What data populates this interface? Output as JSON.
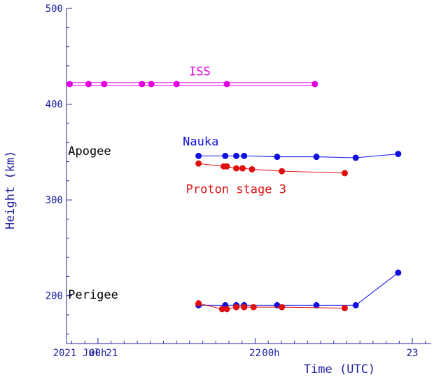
{
  "chart_data": {
    "type": "line",
    "title": "",
    "xlabel": "Time (UTC)",
    "ylabel": "Height (km)",
    "xlim": [
      -0.1,
      1.06
    ],
    "ylim": [
      150,
      500
    ],
    "grid": false,
    "colors": {
      "axis": "#2020a0",
      "text": "#000000",
      "iss": "#e000e0",
      "nauka": "#1010e0",
      "proton": "#e01010"
    },
    "x_tick_labels": [
      {
        "x": -0.04,
        "text": "2021 Jul 21"
      },
      {
        "x": 0.0,
        "text": "00h"
      },
      {
        "x": 0.5,
        "text": "22"
      },
      {
        "x": 0.55,
        "text": "00h"
      },
      {
        "x": 1.0,
        "text": "23"
      }
    ],
    "y_tick_labels": [
      {
        "y": 200,
        "text": "200"
      },
      {
        "y": 300,
        "text": "300"
      },
      {
        "y": 400,
        "text": "400"
      },
      {
        "y": 500,
        "text": "500"
      }
    ],
    "annotations": [
      {
        "text": "ISS",
        "x": 0.29,
        "y": 430,
        "color": "iss"
      },
      {
        "text": "Nauka",
        "x": 0.27,
        "y": 357,
        "color": "nauka"
      },
      {
        "text": "Proton stage 3",
        "x": 0.28,
        "y": 307,
        "color": "proton"
      },
      {
        "text": "Apogee",
        "x": -0.095,
        "y": 347,
        "color": "text"
      },
      {
        "text": "Perigee",
        "x": -0.095,
        "y": 197,
        "color": "text"
      }
    ],
    "series": [
      {
        "name": "ISS",
        "label_ref": 0,
        "color": "iss",
        "line": "double",
        "x": [
          -0.09,
          -0.03,
          0.02,
          0.14,
          0.17,
          0.25,
          0.41,
          0.69
        ],
        "y": [
          421,
          421,
          421,
          421,
          421,
          421,
          421,
          421
        ]
      },
      {
        "name": "Nauka",
        "label_ref": 1,
        "color": "nauka",
        "x": [
          0.32,
          0.405,
          0.44,
          0.465,
          0.57,
          0.695,
          0.82,
          0.955
        ],
        "y": [
          346,
          346,
          346,
          346,
          345,
          345,
          344,
          348
        ]
      },
      {
        "name": "Nauka",
        "label_ref": 1,
        "color": "nauka",
        "x": [
          0.32,
          0.405,
          0.44,
          0.465,
          0.57,
          0.695,
          0.82,
          0.955
        ],
        "y": [
          190,
          190,
          190,
          190,
          190,
          190,
          190,
          224
        ]
      },
      {
        "name": "Proton stage 3",
        "label_ref": 2,
        "color": "proton",
        "x": [
          0.32,
          0.4,
          0.41,
          0.44,
          0.46,
          0.49,
          0.585,
          0.785
        ],
        "y": [
          338,
          335,
          335,
          333,
          333,
          332,
          330,
          328
        ]
      },
      {
        "name": "Proton stage 3",
        "label_ref": 2,
        "color": "proton",
        "x": [
          0.32,
          0.395,
          0.41,
          0.44,
          0.465,
          0.495,
          0.585,
          0.785
        ],
        "y": [
          192,
          186,
          186,
          188,
          188,
          188,
          188,
          187
        ]
      }
    ]
  }
}
